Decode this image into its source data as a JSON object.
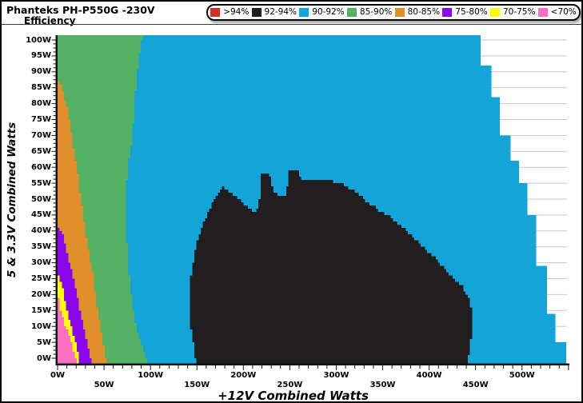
{
  "header": {
    "title": "Phanteks PH-P550G -230V",
    "subtitle": "Efficiency"
  },
  "legend": {
    "items": [
      {
        "label": ">94%",
        "color": "#d92c31"
      },
      {
        "label": "92-94%",
        "color": "#221e1f"
      },
      {
        "label": "90-92%",
        "color": "#14a5d8"
      },
      {
        "label": "85-90%",
        "color": "#55b164"
      },
      {
        "label": "80-85%",
        "color": "#e18f2b"
      },
      {
        "label": "75-80%",
        "color": "#8a06ef"
      },
      {
        "label": "70-75%",
        "color": "#fcfc02"
      },
      {
        "label": "<70%",
        "color": "#fb6fc3"
      }
    ]
  },
  "chart_data": {
    "type": "heatmap",
    "title": "Phanteks PH-P550G -230V",
    "subtitle": "Efficiency",
    "xlabel": "+12V Combined Watts",
    "ylabel": "5 & 3.3V Combined Watts",
    "xlim": [
      0,
      551
    ],
    "ylim": [
      0,
      101.5
    ],
    "x_minor_step": 10,
    "y_minor_step": 1.25,
    "grid": {
      "horizontal_every": 5,
      "color": "#c9c9c9"
    },
    "legend_position": "top-right",
    "x_ticks": [
      {
        "v": 0,
        "label": "0W"
      },
      {
        "v": 50,
        "label": "50W"
      },
      {
        "v": 100,
        "label": "100W"
      },
      {
        "v": 150,
        "label": "150W"
      },
      {
        "v": 200,
        "label": "200W"
      },
      {
        "v": 250,
        "label": "250W"
      },
      {
        "v": 300,
        "label": "300W"
      },
      {
        "v": 350,
        "label": "350W"
      },
      {
        "v": 400,
        "label": "400W"
      },
      {
        "v": 450,
        "label": "450W"
      },
      {
        "v": 500,
        "label": "500W"
      }
    ],
    "y_ticks": [
      {
        "v": 0,
        "label": "0W"
      },
      {
        "v": 5,
        "label": "5W"
      },
      {
        "v": 10,
        "label": "10W"
      },
      {
        "v": 15,
        "label": "15W"
      },
      {
        "v": 20,
        "label": "20W"
      },
      {
        "v": 25,
        "label": "25W"
      },
      {
        "v": 30,
        "label": "30W"
      },
      {
        "v": 35,
        "label": "35W"
      },
      {
        "v": 40,
        "label": "40W"
      },
      {
        "v": 45,
        "label": "45W"
      },
      {
        "v": 50,
        "label": "50W"
      },
      {
        "v": 55,
        "label": "55W"
      },
      {
        "v": 60,
        "label": "60W"
      },
      {
        "v": 65,
        "label": "65W"
      },
      {
        "v": 70,
        "label": "70W"
      },
      {
        "v": 75,
        "label": "75W"
      },
      {
        "v": 80,
        "label": "80W"
      },
      {
        "v": 85,
        "label": "85W"
      },
      {
        "v": 90,
        "label": "90W"
      },
      {
        "v": 95,
        "label": "95W"
      },
      {
        "v": 100,
        "label": "100W"
      }
    ],
    "bands": [
      {
        "label": "90-92%",
        "color": "#14a5d8",
        "boundary": [
          [
            547,
            0
          ],
          [
            547,
            5
          ],
          [
            537,
            5
          ],
          [
            537,
            14
          ],
          [
            527,
            14
          ],
          [
            527,
            29
          ],
          [
            516,
            29
          ],
          [
            516,
            45
          ],
          [
            507,
            45
          ],
          [
            507,
            55
          ],
          [
            497,
            55
          ],
          [
            497,
            62
          ],
          [
            487,
            62
          ],
          [
            487,
            70
          ],
          [
            477,
            70
          ],
          [
            477,
            82
          ],
          [
            467,
            82
          ],
          [
            467,
            92
          ],
          [
            456,
            92
          ],
          [
            456,
            101.5
          ]
        ]
      },
      {
        "label": "85-90%",
        "color": "#55b164",
        "boundary": [
          [
            96,
            0
          ],
          [
            90,
            5
          ],
          [
            85,
            10
          ],
          [
            81,
            16
          ],
          [
            79,
            21
          ],
          [
            77,
            27
          ],
          [
            75,
            34
          ],
          [
            74,
            42
          ],
          [
            74,
            52
          ],
          [
            75,
            58
          ],
          [
            77,
            63
          ],
          [
            79,
            66
          ],
          [
            81,
            72
          ],
          [
            83,
            80
          ],
          [
            85,
            89
          ],
          [
            88,
            95
          ],
          [
            90,
            99
          ],
          [
            92,
            101.5
          ]
        ]
      },
      {
        "label": "80-85%",
        "color": "#e18f2b",
        "boundary": [
          [
            52,
            0
          ],
          [
            49,
            5
          ],
          [
            46,
            10
          ],
          [
            42,
            18
          ],
          [
            38,
            27
          ],
          [
            33,
            35
          ],
          [
            29,
            43
          ],
          [
            25,
            51
          ],
          [
            21,
            60
          ],
          [
            16,
            69
          ],
          [
            12,
            77
          ],
          [
            8,
            82
          ],
          [
            5,
            85
          ],
          [
            2,
            87
          ],
          [
            0,
            88.5
          ]
        ]
      },
      {
        "label": "75-80%",
        "color": "#8a06ef",
        "boundary": [
          [
            36,
            0
          ],
          [
            32,
            5
          ],
          [
            28,
            10
          ],
          [
            22,
            19
          ],
          [
            16,
            27
          ],
          [
            10,
            34
          ],
          [
            6,
            39
          ],
          [
            2,
            41
          ],
          [
            0,
            42.5
          ]
        ]
      },
      {
        "label": "70-75%",
        "color": "#fcfc02",
        "boundary": [
          [
            24,
            0
          ],
          [
            20,
            5
          ],
          [
            15,
            10
          ],
          [
            10,
            16
          ],
          [
            6,
            22
          ],
          [
            2,
            26
          ],
          [
            0,
            28
          ]
        ]
      },
      {
        "label": "<70%",
        "color": "#fb6fc3",
        "boundary": [
          [
            20,
            0
          ],
          [
            16,
            4
          ],
          [
            13,
            7
          ],
          [
            8,
            11
          ],
          [
            4,
            15
          ],
          [
            2,
            18
          ],
          [
            0,
            21
          ]
        ]
      }
    ],
    "island": {
      "label": "92-94%",
      "color": "#221e1f",
      "polygon": [
        [
          150,
          -3
        ],
        [
          147,
          4
        ],
        [
          144,
          9
        ],
        [
          142,
          14
        ],
        [
          142,
          20
        ],
        [
          143,
          25
        ],
        [
          145,
          29
        ],
        [
          148,
          34
        ],
        [
          152,
          39
        ],
        [
          157,
          43
        ],
        [
          163,
          47
        ],
        [
          170,
          50.5
        ],
        [
          177,
          53.5
        ],
        [
          185,
          52
        ],
        [
          193,
          50
        ],
        [
          201,
          48
        ],
        [
          208,
          46.5
        ],
        [
          212,
          46
        ],
        [
          215,
          47
        ],
        [
          217,
          50
        ],
        [
          218.5,
          54
        ],
        [
          219,
          58
        ],
        [
          228,
          58
        ],
        [
          230,
          54.5
        ],
        [
          232.5,
          52
        ],
        [
          236,
          51
        ],
        [
          244,
          51
        ],
        [
          246.5,
          53
        ],
        [
          248.5,
          56
        ],
        [
          249.5,
          58.5
        ],
        [
          258,
          58.5
        ],
        [
          261,
          56.5
        ],
        [
          266,
          56
        ],
        [
          280,
          56
        ],
        [
          294,
          55.5
        ],
        [
          307,
          54.5
        ],
        [
          316,
          53
        ],
        [
          326,
          50.5
        ],
        [
          340,
          47.5
        ],
        [
          354,
          45
        ],
        [
          368,
          41.5
        ],
        [
          382,
          38
        ],
        [
          396,
          34
        ],
        [
          410,
          30
        ],
        [
          424,
          25.5
        ],
        [
          436,
          22
        ],
        [
          441,
          19.5
        ],
        [
          445,
          16
        ],
        [
          447,
          12
        ],
        [
          446.5,
          8
        ],
        [
          444,
          3
        ],
        [
          441,
          -3
        ]
      ]
    }
  },
  "colors": {
    "background": "#ffffff",
    "axis": "#141414",
    "grid": "#c9c9c9",
    "frame": "#000000",
    "separator": "#3c3c3c"
  }
}
